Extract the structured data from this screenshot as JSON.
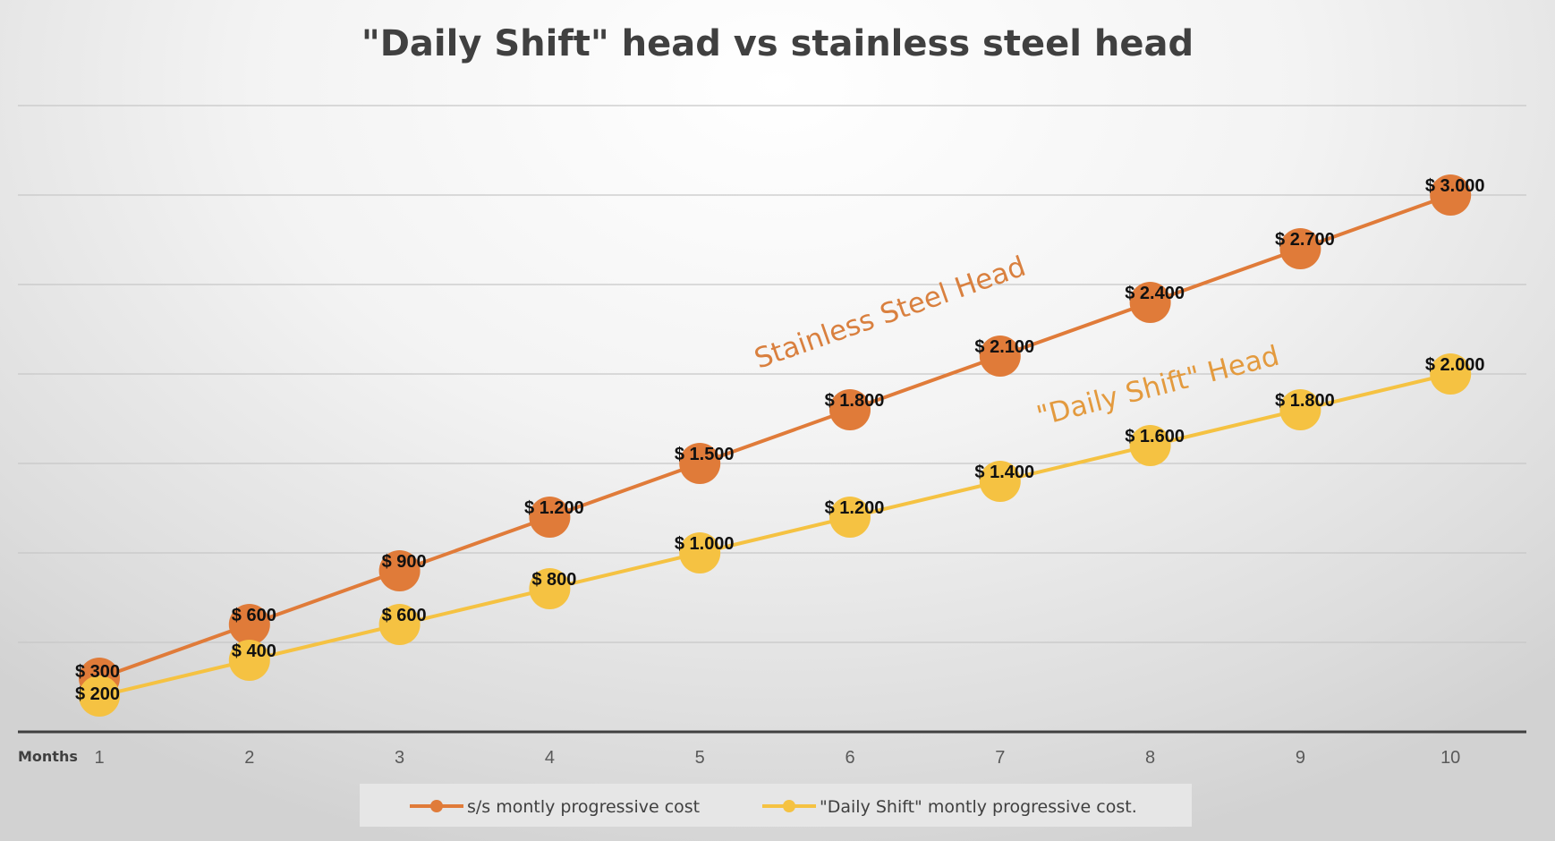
{
  "chart_data": {
    "type": "line",
    "title": "\"Daily Shift\" head vs stainless steel head",
    "xlabel": "Months",
    "ylabel": "",
    "x": [
      1,
      2,
      3,
      4,
      5,
      6,
      7,
      8,
      9,
      10
    ],
    "ylim": [
      0,
      3500
    ],
    "grid": true,
    "legend_position": "bottom",
    "series": [
      {
        "name": "s/s montly progressive cost",
        "color": "#E07B39",
        "values": [
          300,
          600,
          900,
          1200,
          1500,
          1800,
          2100,
          2400,
          2700,
          3000
        ],
        "labels": [
          "$ 300",
          "$ 600",
          "$ 900",
          "$ 1.200",
          "$ 1.500",
          "$ 1.800",
          "$ 2.100",
          "$ 2.400",
          "$ 2.700",
          "$ 3.000"
        ]
      },
      {
        "name": "\"Daily Shift\" montly progressive cost.",
        "color": "#F5C242",
        "values": [
          200,
          400,
          600,
          800,
          1000,
          1200,
          1400,
          1600,
          1800,
          2000
        ],
        "labels": [
          "$ 200",
          "$ 400",
          "$ 600",
          "$ 800",
          "$ 1.000",
          "$ 1.200",
          "$ 1.400",
          "$ 1.600",
          "$ 1.800",
          "$ 2.000"
        ]
      }
    ],
    "annotations": [
      {
        "text": "Stainless Steel Head",
        "color": "#D9803F"
      },
      {
        "text": "\"Daily Shift\" Head",
        "color": "#E39A3E"
      }
    ]
  }
}
